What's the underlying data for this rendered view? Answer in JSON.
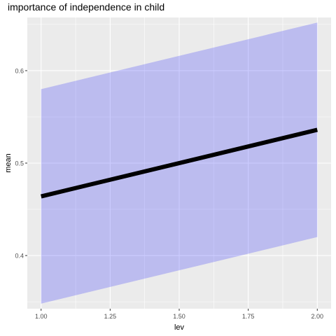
{
  "chart_data": {
    "type": "line",
    "title": "importance of independence in child",
    "xlabel": "lev",
    "ylabel": "mean",
    "x": [
      1.0,
      2.0
    ],
    "series": [
      {
        "values": [
          0.464,
          0.536
        ],
        "lower": [
          0.348,
          0.42
        ],
        "upper": [
          0.58,
          0.652
        ]
      }
    ],
    "xlim": [
      0.95,
      2.05
    ],
    "ylim": [
      0.3425,
      0.6575
    ],
    "x_ticks": [
      1.0,
      1.25,
      1.5,
      1.75,
      2.0
    ],
    "x_tick_labels": [
      "1.00",
      "1.25",
      "1.50",
      "1.75",
      "2.00"
    ],
    "y_ticks": [
      0.4,
      0.5,
      0.6
    ],
    "y_tick_labels": [
      "0.4",
      "0.5",
      "0.6"
    ],
    "grid": true,
    "colors": {
      "panel_background": "#EBEBEB",
      "grid": "#FFFFFF",
      "ribbon": "#0000FF",
      "line": "#000000",
      "text": "#000000",
      "tick_text": "#4D4D4D"
    }
  }
}
